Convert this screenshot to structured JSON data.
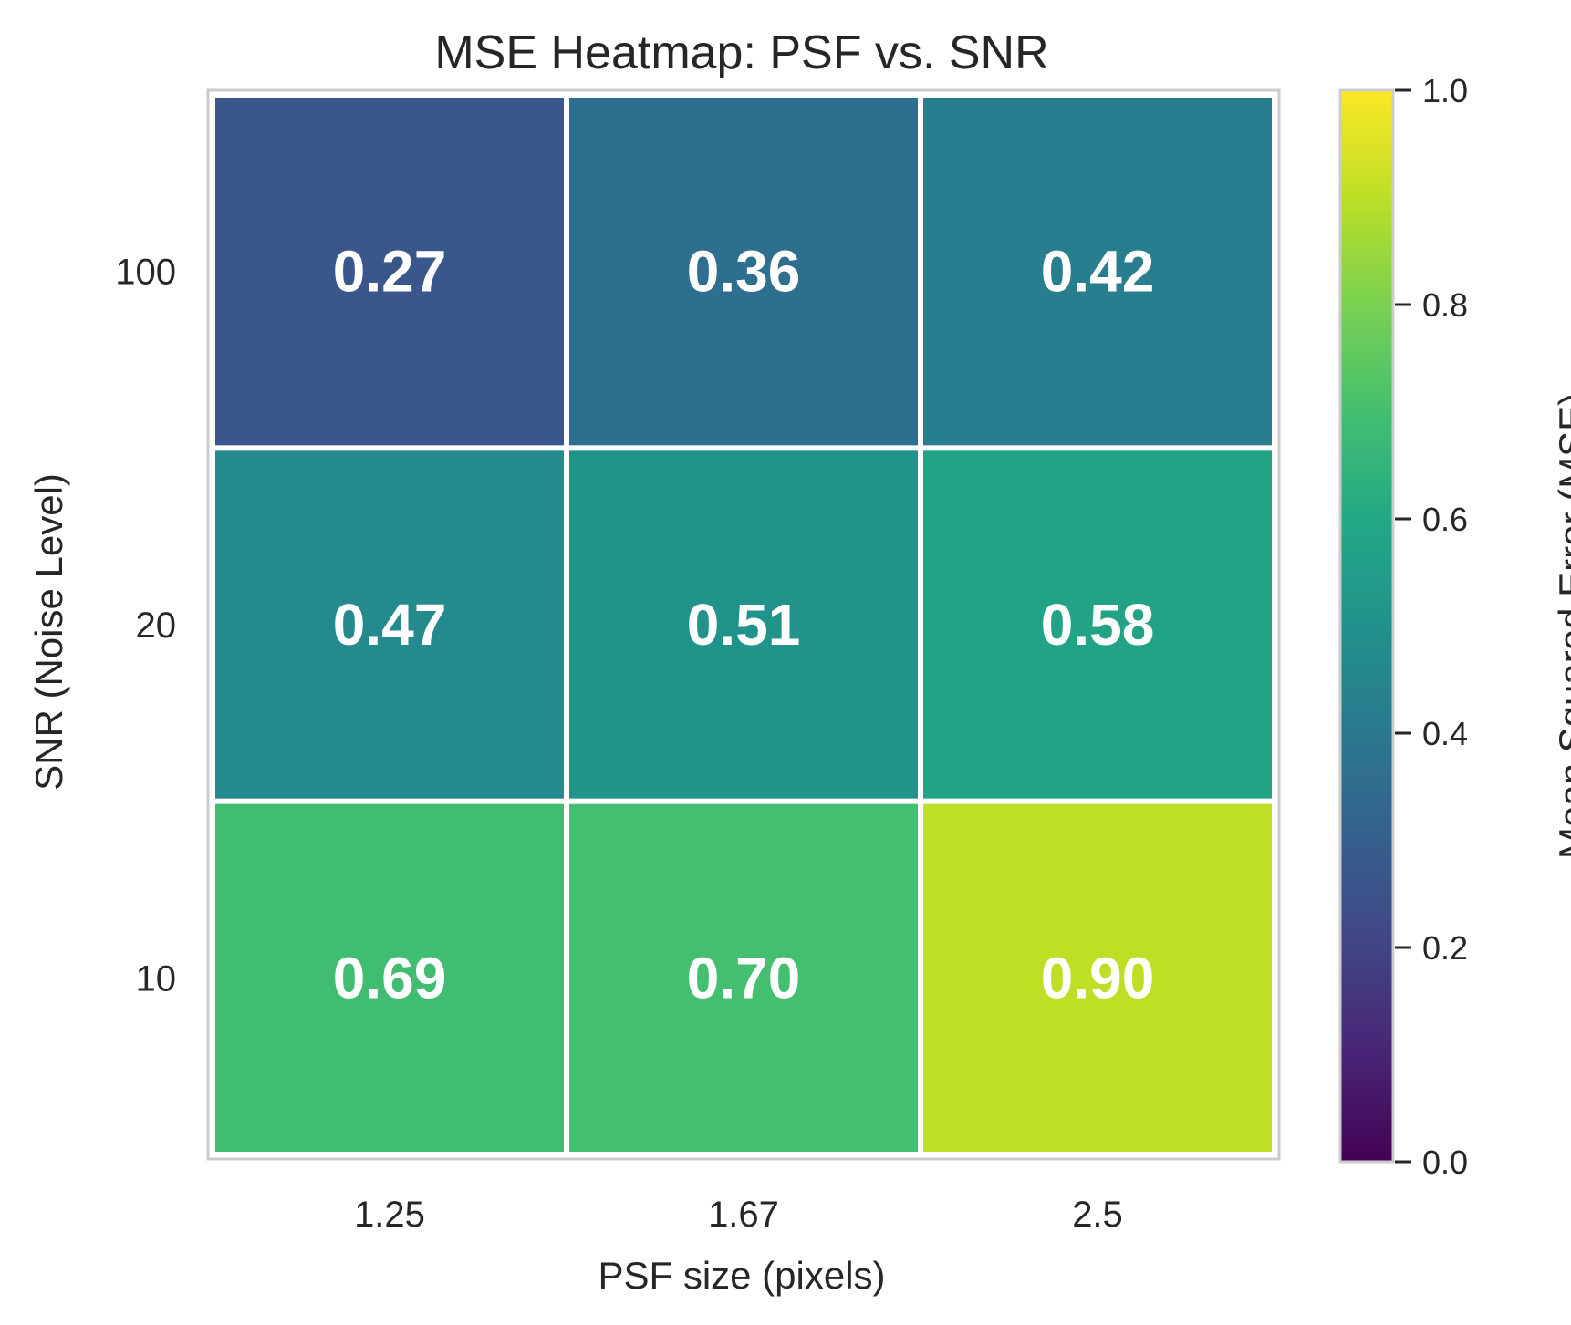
{
  "chart_data": {
    "type": "heatmap",
    "title": "MSE Heatmap: PSF vs. SNR",
    "xlabel": "PSF size (pixels)",
    "ylabel": "SNR (Noise Level)",
    "x_categories": [
      "1.25",
      "1.67",
      "2.5"
    ],
    "y_categories": [
      "100",
      "20",
      "10"
    ],
    "values": [
      [
        0.27,
        0.36,
        0.42
      ],
      [
        0.47,
        0.51,
        0.58
      ],
      [
        0.69,
        0.7,
        0.9
      ]
    ],
    "cell_labels": [
      [
        "0.27",
        "0.36",
        "0.42"
      ],
      [
        "0.47",
        "0.51",
        "0.58"
      ],
      [
        "0.69",
        "0.70",
        "0.90"
      ]
    ],
    "colorbar": {
      "label": "Mean Squared Error (MSE)",
      "range": [
        0.0,
        1.0
      ],
      "ticks": [
        "0.0",
        "0.2",
        "0.4",
        "0.6",
        "0.8",
        "1.0"
      ],
      "colormap": "viridis"
    },
    "cell_label_color": "#ffffff",
    "grid": false
  }
}
